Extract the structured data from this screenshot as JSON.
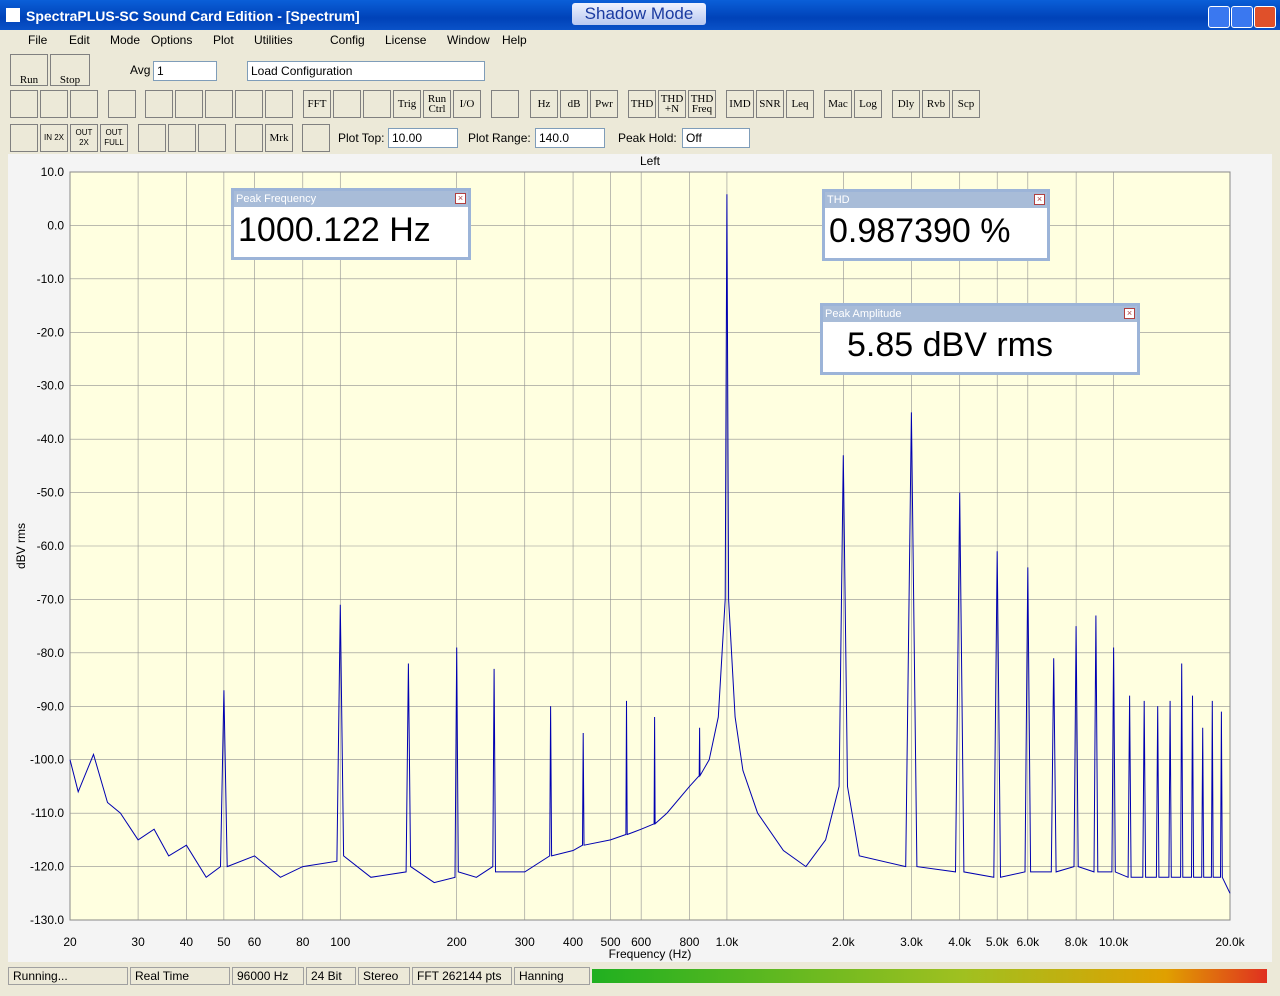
{
  "window": {
    "title": "SpectraPLUS-SC Sound Card Edition - [Spectrum]",
    "badge": "Shadow Mode"
  },
  "menu": [
    "File",
    "Edit",
    "Mode",
    "Options",
    "Plot",
    "Utilities",
    "Config",
    "License",
    "Window",
    "Help"
  ],
  "toolbar": {
    "run": "Run",
    "stop": "Stop",
    "avg_label": "Avg",
    "avg_value": "1",
    "config": "Load Configuration"
  },
  "buttons": [
    "FFT",
    "Trig",
    "Run Ctrl",
    "I/O",
    "Hz",
    "dB",
    "Pwr",
    "THD",
    "THD +N",
    "THD Freq",
    "IMD",
    "SNR",
    "Leq",
    "Mac",
    "Log",
    "Dly",
    "Rvb",
    "Scp"
  ],
  "zoom_buttons": [
    "IN 2X",
    "OUT 2X",
    "OUT FULL"
  ],
  "zoom_bar": {
    "mrk": "Mrk",
    "plot_top_label": "Plot Top:",
    "plot_top": "10.00",
    "plot_range_label": "Plot Range:",
    "plot_range": "140.0",
    "peak_hold_label": "Peak Hold:",
    "peak_hold": "Off"
  },
  "readouts": [
    {
      "title": "Peak Frequency",
      "value": "1000.122 Hz"
    },
    {
      "title": "THD",
      "value": "0.987390 %"
    },
    {
      "title": "Peak Amplitude",
      "value": "5.85 dBV rms"
    }
  ],
  "status": [
    "Running...",
    "Real Time",
    "96000 Hz",
    "24 Bit",
    "Stereo",
    "FFT 262144 pts",
    "Hanning"
  ],
  "chart_data": {
    "type": "line",
    "title": "Left",
    "xlabel": "Frequency (Hz)",
    "ylabel": "dBV rms",
    "xscale": "log",
    "grid": true,
    "background": "#ffffe0",
    "xlim": [
      20,
      20000
    ],
    "ylim": [
      -130,
      10
    ],
    "xticks": [
      20,
      30,
      40,
      50,
      60,
      80,
      100,
      200,
      300,
      400,
      500,
      600,
      800,
      {
        "value": 1000,
        "label": "1.0k"
      },
      {
        "value": 2000,
        "label": "2.0k"
      },
      {
        "value": 3000,
        "label": "3.0k"
      },
      {
        "value": 4000,
        "label": "4.0k"
      },
      {
        "value": 5000,
        "label": "5.0k"
      },
      {
        "value": 6000,
        "label": "6.0k"
      },
      {
        "value": 8000,
        "label": "8.0k"
      },
      {
        "value": 10000,
        "label": "10.0k"
      },
      {
        "value": 20000,
        "label": "20.0k"
      }
    ],
    "yticks": [
      {
        "value": 10,
        "label": "10.0"
      },
      {
        "value": 0,
        "label": "0.0"
      },
      {
        "value": -10,
        "label": "-10.0"
      },
      {
        "value": -20,
        "label": "-20.0"
      },
      {
        "value": -30,
        "label": "-30.0"
      },
      {
        "value": -40,
        "label": "-40.0"
      },
      {
        "value": -50,
        "label": "-50.0"
      },
      {
        "value": -60,
        "label": "-60.0"
      },
      {
        "value": -70,
        "label": "-70.0"
      },
      {
        "value": -80,
        "label": "-80.0"
      },
      {
        "value": -90,
        "label": "-90.0"
      },
      {
        "value": -100,
        "label": "-100.0"
      },
      {
        "value": -110,
        "label": "-110.0"
      },
      {
        "value": -120,
        "label": "-120.0"
      },
      {
        "value": -130,
        "label": "-130.0"
      }
    ],
    "series": [
      {
        "color": "#0000b0",
        "x": [
          20,
          21,
          23,
          25,
          27,
          30,
          33,
          36,
          40,
          45,
          49,
          50,
          51,
          60,
          70,
          80,
          98,
          100,
          102,
          120,
          148,
          150,
          152,
          175,
          198,
          200,
          202,
          225,
          248,
          250,
          252,
          300,
          348,
          350,
          352,
          400,
          423,
          425,
          427,
          500,
          548,
          550,
          552,
          600,
          648,
          650,
          652,
          700,
          800,
          848,
          850,
          852,
          900,
          950,
          990,
          1000,
          1010,
          1050,
          1100,
          1200,
          1400,
          1600,
          1800,
          1950,
          2000,
          2050,
          2200,
          2900,
          3000,
          3100,
          3900,
          4000,
          4100,
          4900,
          5000,
          5100,
          5900,
          6000,
          6100,
          6900,
          7000,
          7100,
          7900,
          8000,
          8100,
          8900,
          9000,
          9100,
          9900,
          10000,
          10100,
          10900,
          11000,
          11100,
          11900,
          12000,
          12100,
          12900,
          13000,
          13100,
          13900,
          14000,
          14100,
          14900,
          15000,
          15100,
          15900,
          16000,
          16100,
          16900,
          17000,
          17100,
          17900,
          18000,
          18100,
          18900,
          19000,
          19100,
          20000
        ],
        "values": [
          -100,
          -106,
          -99,
          -108,
          -110,
          -115,
          -113,
          -118,
          -116,
          -122,
          -120,
          -87,
          -120,
          -118,
          -122,
          -120,
          -119,
          -71,
          -118,
          -122,
          -121,
          -82,
          -120,
          -123,
          -122,
          -79,
          -121,
          -122,
          -120,
          -83,
          -121,
          -121,
          -118,
          -90,
          -118,
          -117,
          -116,
          -95,
          -116,
          -115,
          -114,
          -89,
          -114,
          -113,
          -112,
          -92,
          -112,
          -110,
          -105,
          -103,
          -94,
          -103,
          -100,
          -92,
          -70,
          5.85,
          -70,
          -92,
          -102,
          -110,
          -117,
          -120,
          -115,
          -105,
          -43,
          -105,
          -118,
          -120,
          -35,
          -120,
          -121,
          -50,
          -121,
          -122,
          -61,
          -122,
          -121,
          -64,
          -121,
          -121,
          -81,
          -121,
          -120,
          -75,
          -120,
          -121,
          -73,
          -121,
          -121,
          -79,
          -121,
          -122,
          -88,
          -122,
          -122,
          -89,
          -122,
          -122,
          -90,
          -122,
          -122,
          -89,
          -122,
          -122,
          -82,
          -122,
          -122,
          -88,
          -122,
          -122,
          -94,
          -122,
          -122,
          -89,
          -122,
          -122,
          -91,
          -122,
          -125
        ]
      }
    ]
  }
}
